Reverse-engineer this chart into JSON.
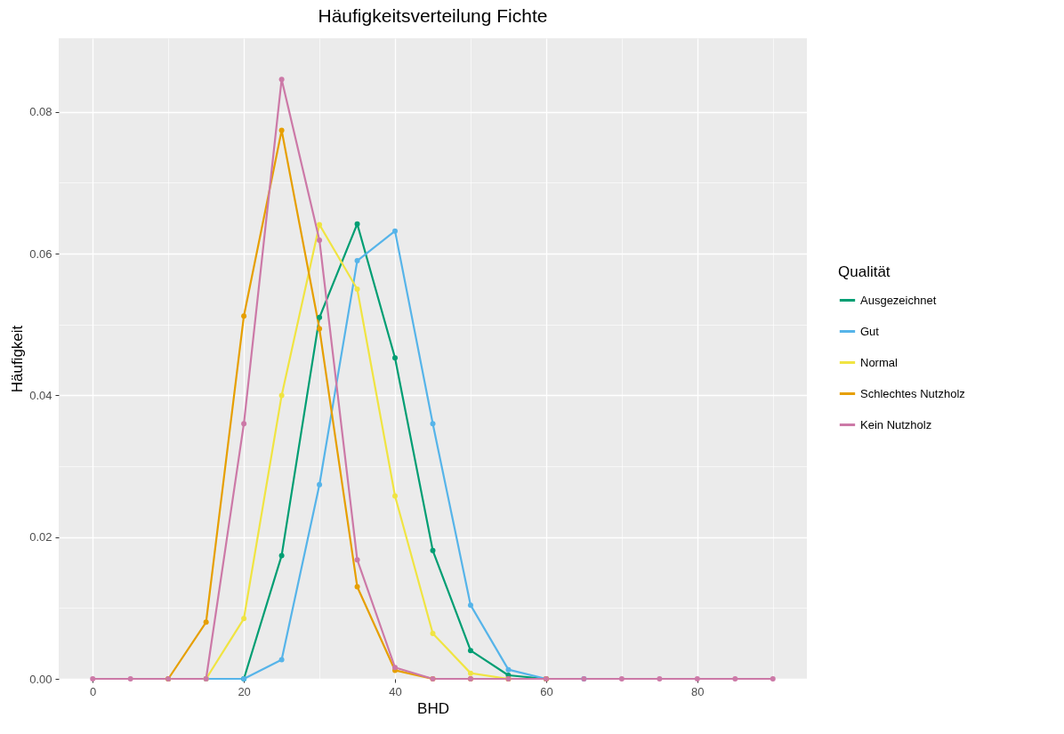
{
  "chart_data": {
    "type": "line",
    "title": "Häufigkeitsverteilung Fichte",
    "xlabel": "BHD",
    "ylabel": "Häufigkeit",
    "legend_title": "Qualität",
    "x": [
      0,
      5,
      10,
      15,
      20,
      25,
      30,
      35,
      40,
      45,
      50,
      55,
      60,
      65,
      70,
      75,
      80,
      85,
      90
    ],
    "series": [
      {
        "name": "Ausgezeichnet",
        "color": "#009e73",
        "values": [
          null,
          null,
          null,
          null,
          0,
          0.0174,
          0.051,
          0.0642,
          0.0453,
          0.0181,
          0.004,
          0.0005,
          0,
          null,
          null,
          null,
          null,
          null,
          null
        ]
      },
      {
        "name": "Gut",
        "color": "#56b4e9",
        "values": [
          null,
          null,
          0,
          0,
          0,
          0.0027,
          0.0274,
          0.059,
          0.0632,
          0.036,
          0.0104,
          0.0013,
          0,
          0,
          null,
          null,
          null,
          null,
          null
        ]
      },
      {
        "name": "Normal",
        "color": "#f0e442",
        "values": [
          null,
          null,
          0,
          0,
          0.0085,
          0.04,
          0.0641,
          0.055,
          0.0258,
          0.0064,
          0.0008,
          0,
          0,
          null,
          null,
          null,
          null,
          null,
          null
        ]
      },
      {
        "name": "Schlechtes Nutzholz",
        "color": "#e69f00",
        "values": [
          null,
          null,
          0,
          0.008,
          0.0512,
          0.0774,
          0.0494,
          0.013,
          0.0012,
          0,
          0,
          0,
          0,
          null,
          null,
          null,
          null,
          null,
          null
        ]
      },
      {
        "name": "Kein Nutzholz",
        "color": "#cc79a7",
        "values": [
          0,
          0,
          0,
          0,
          0.036,
          0.0846,
          0.0619,
          0.0168,
          0.0016,
          0,
          0,
          0,
          0,
          0,
          0,
          0,
          0,
          0,
          0
        ]
      }
    ],
    "xlim": [
      -4.5,
      94.5
    ],
    "ylim": [
      0,
      0.0904
    ],
    "xticks": [
      0,
      {
        "value": 10,
        "label": null
      },
      20,
      {
        "value": 30,
        "label": null
      },
      40,
      {
        "value": 50,
        "label": null
      },
      60,
      {
        "value": 70,
        "label": null
      },
      80,
      {
        "value": 90,
        "label": null
      }
    ],
    "yticks": [
      {
        "value": 0,
        "label": "0.00"
      },
      {
        "value": 0.01,
        "label": null
      },
      0.02,
      {
        "value": 0.03,
        "label": null
      },
      0.04,
      {
        "value": 0.05,
        "label": null
      },
      0.06,
      {
        "value": 0.07,
        "label": null
      },
      0.08
    ],
    "grid": true,
    "legend": "right",
    "marker": "circle",
    "line_style": "solid"
  }
}
